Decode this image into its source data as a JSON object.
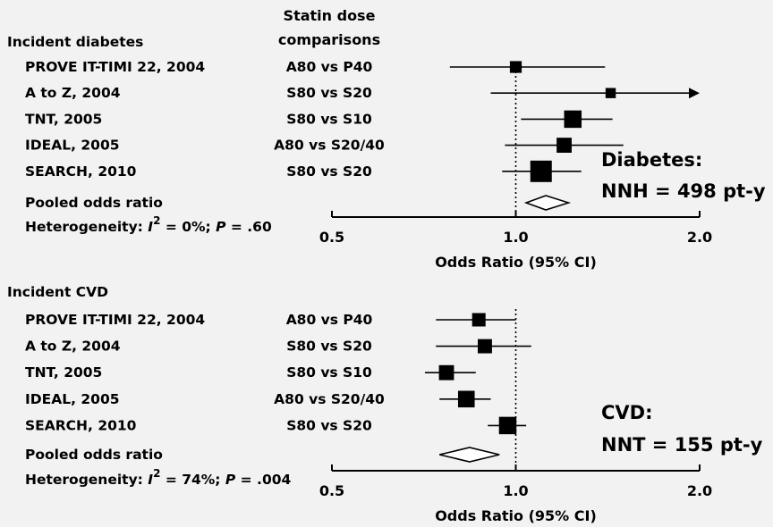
{
  "header": {
    "col_line1": "Statin dose",
    "col_line2": "comparisons"
  },
  "chart_data": [
    {
      "type": "forest",
      "section_label": "Incident diabetes",
      "x_scale": "log",
      "xlim": [
        0.5,
        2.0
      ],
      "ticks": [
        "0.5",
        "1.0",
        "2.0"
      ],
      "tick_values": [
        0.5,
        1.0,
        2.0
      ],
      "reference_line": 1.0,
      "xlabel": "Odds Ratio (95% CI)",
      "studies": [
        {
          "name": "PROVE IT-TIMI 22, 2004",
          "comparison": "A80 vs P40",
          "or": 1.0,
          "ci": [
            0.78,
            1.4
          ],
          "weight": 0.8,
          "arrow": false
        },
        {
          "name": "A to Z, 2004",
          "comparison": "S80 vs S20",
          "or": 1.43,
          "ci": [
            0.91,
            2.0
          ],
          "weight": 0.6,
          "arrow": true
        },
        {
          "name": "TNT, 2005",
          "comparison": "S80 vs S10",
          "or": 1.24,
          "ci": [
            1.02,
            1.44
          ],
          "weight": 1.5,
          "arrow": false
        },
        {
          "name": "IDEAL, 2005",
          "comparison": "A80 vs S20/40",
          "or": 1.2,
          "ci": [
            0.96,
            1.5
          ],
          "weight": 1.2,
          "arrow": false
        },
        {
          "name": "SEARCH, 2010",
          "comparison": "S80 vs S20",
          "or": 1.1,
          "ci": [
            0.95,
            1.28
          ],
          "weight": 2.0,
          "arrow": false
        }
      ],
      "pooled": {
        "label": "Pooled odds ratio",
        "or": 1.12,
        "ci": [
          1.04,
          1.22
        ]
      },
      "heterogeneity": {
        "prefix": "Heterogeneity: ",
        "i_symbol": "I",
        "sup": "2",
        "mid": " = 0%; ",
        "p_symbol": "P",
        "suffix": " = .60"
      },
      "summary_line1": "Diabetes:",
      "summary_line2": "NNH = 498 pt-y"
    },
    {
      "type": "forest",
      "section_label": "Incident CVD",
      "x_scale": "log",
      "xlim": [
        0.5,
        2.0
      ],
      "ticks": [
        "0.5",
        "1.0",
        "2.0"
      ],
      "tick_values": [
        0.5,
        1.0,
        2.0
      ],
      "reference_line": 1.0,
      "xlabel": "Odds Ratio (95% CI)",
      "studies": [
        {
          "name": "PROVE IT-TIMI 22, 2004",
          "comparison": "A80 vs P40",
          "or": 0.87,
          "ci": [
            0.74,
            1.0
          ],
          "weight": 1.0,
          "arrow": false
        },
        {
          "name": "A to Z, 2004",
          "comparison": "S80 vs S20",
          "or": 0.89,
          "ci": [
            0.74,
            1.06
          ],
          "weight": 1.1,
          "arrow": false
        },
        {
          "name": "TNT, 2005",
          "comparison": "S80 vs S10",
          "or": 0.77,
          "ci": [
            0.71,
            0.86
          ],
          "weight": 1.2,
          "arrow": false
        },
        {
          "name": "IDEAL, 2005",
          "comparison": "A80 vs S20/40",
          "or": 0.83,
          "ci": [
            0.75,
            0.91
          ],
          "weight": 1.4,
          "arrow": false
        },
        {
          "name": "SEARCH, 2010",
          "comparison": "S80 vs S20",
          "or": 0.97,
          "ci": [
            0.9,
            1.04
          ],
          "weight": 1.5,
          "arrow": false
        }
      ],
      "pooled": {
        "label": "Pooled odds ratio",
        "or": 0.84,
        "ci": [
          0.75,
          0.94
        ]
      },
      "heterogeneity": {
        "prefix": "Heterogeneity: ",
        "i_symbol": "I",
        "sup": "2",
        "mid": " = 74%; ",
        "p_symbol": "P",
        "suffix": " = .004"
      },
      "summary_line1": "CVD:",
      "summary_line2": "NNT = 155 pt-y"
    }
  ]
}
